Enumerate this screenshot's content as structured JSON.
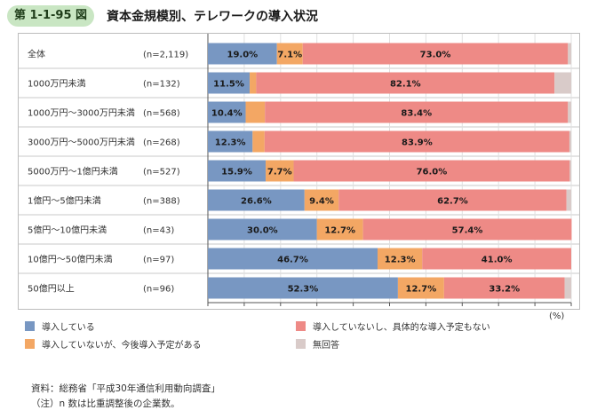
{
  "figure": {
    "number": "第 1-1-95 図",
    "title": "資本金規模別、テレワークの導入状況"
  },
  "notes": {
    "source": "資料：総務省「平成30年通信利用動向調査」",
    "note": "（注）n 数は比重調整後の企業数。"
  },
  "colors": {
    "introduced": "#7897c2",
    "planned": "#f3a764",
    "not_planned": "#ee8a86",
    "no_answer": "#d9cbc9",
    "badge": "#c9e6c3"
  },
  "chart_data": {
    "type": "bar",
    "orientation": "horizontal",
    "stacked": true,
    "categories": [
      "全体",
      "1000万円未満",
      "1000万円～3000万円未満",
      "3000万円～5000万円未満",
      "5000万円～1億円未満",
      "1億円～5億円未満",
      "5億円～10億円未満",
      "10億円～50億円未満",
      "50億円以上"
    ],
    "sample_sizes": [
      "(n=2,119)",
      "(n=132)",
      "(n=568)",
      "(n=268)",
      "(n=527)",
      "(n=388)",
      "(n=43)",
      "(n=97)",
      "(n=96)"
    ],
    "series": [
      {
        "name": "導入している",
        "color": "#7897c2",
        "values": [
          19.0,
          11.5,
          10.4,
          12.3,
          15.9,
          26.6,
          30.0,
          46.7,
          52.3
        ],
        "labels": [
          "19.0%",
          "11.5%",
          "10.4%",
          "12.3%",
          "15.9%",
          "26.6%",
          "30.0%",
          "46.7%",
          "52.3%"
        ]
      },
      {
        "name": "導入していないが、今後導入予定がある",
        "color": "#f3a764",
        "values": [
          7.1,
          1.8,
          5.3,
          3.3,
          7.7,
          9.4,
          12.7,
          12.3,
          12.7
        ],
        "labels": [
          "7.1%",
          "",
          "",
          "",
          "7.7%",
          "9.4%",
          "12.7%",
          "12.3%",
          "12.7%"
        ]
      },
      {
        "name": "導入していないし、具体的な導入予定もない",
        "color": "#ee8a86",
        "values": [
          73.0,
          82.1,
          83.4,
          83.9,
          76.0,
          62.7,
          57.4,
          41.0,
          33.2
        ],
        "labels": [
          "73.0%",
          "82.1%",
          "83.4%",
          "83.9%",
          "76.0%",
          "62.7%",
          "57.4%",
          "41.0%",
          "33.2%"
        ]
      },
      {
        "name": "無回答",
        "color": "#d9cbc9",
        "values": [
          0.9,
          4.6,
          0.9,
          0.5,
          0.4,
          1.3,
          0,
          0,
          1.8
        ],
        "labels": [
          "",
          "",
          "",
          "",
          "",
          "",
          "",
          "",
          ""
        ]
      }
    ],
    "x_ticks": [
      "0",
      "10",
      "20",
      "30",
      "40",
      "50",
      "60",
      "70",
      "80",
      "90",
      "100"
    ],
    "x_unit": "(%)",
    "xlim": [
      0,
      100
    ],
    "grid": true,
    "legend_position": "bottom"
  }
}
